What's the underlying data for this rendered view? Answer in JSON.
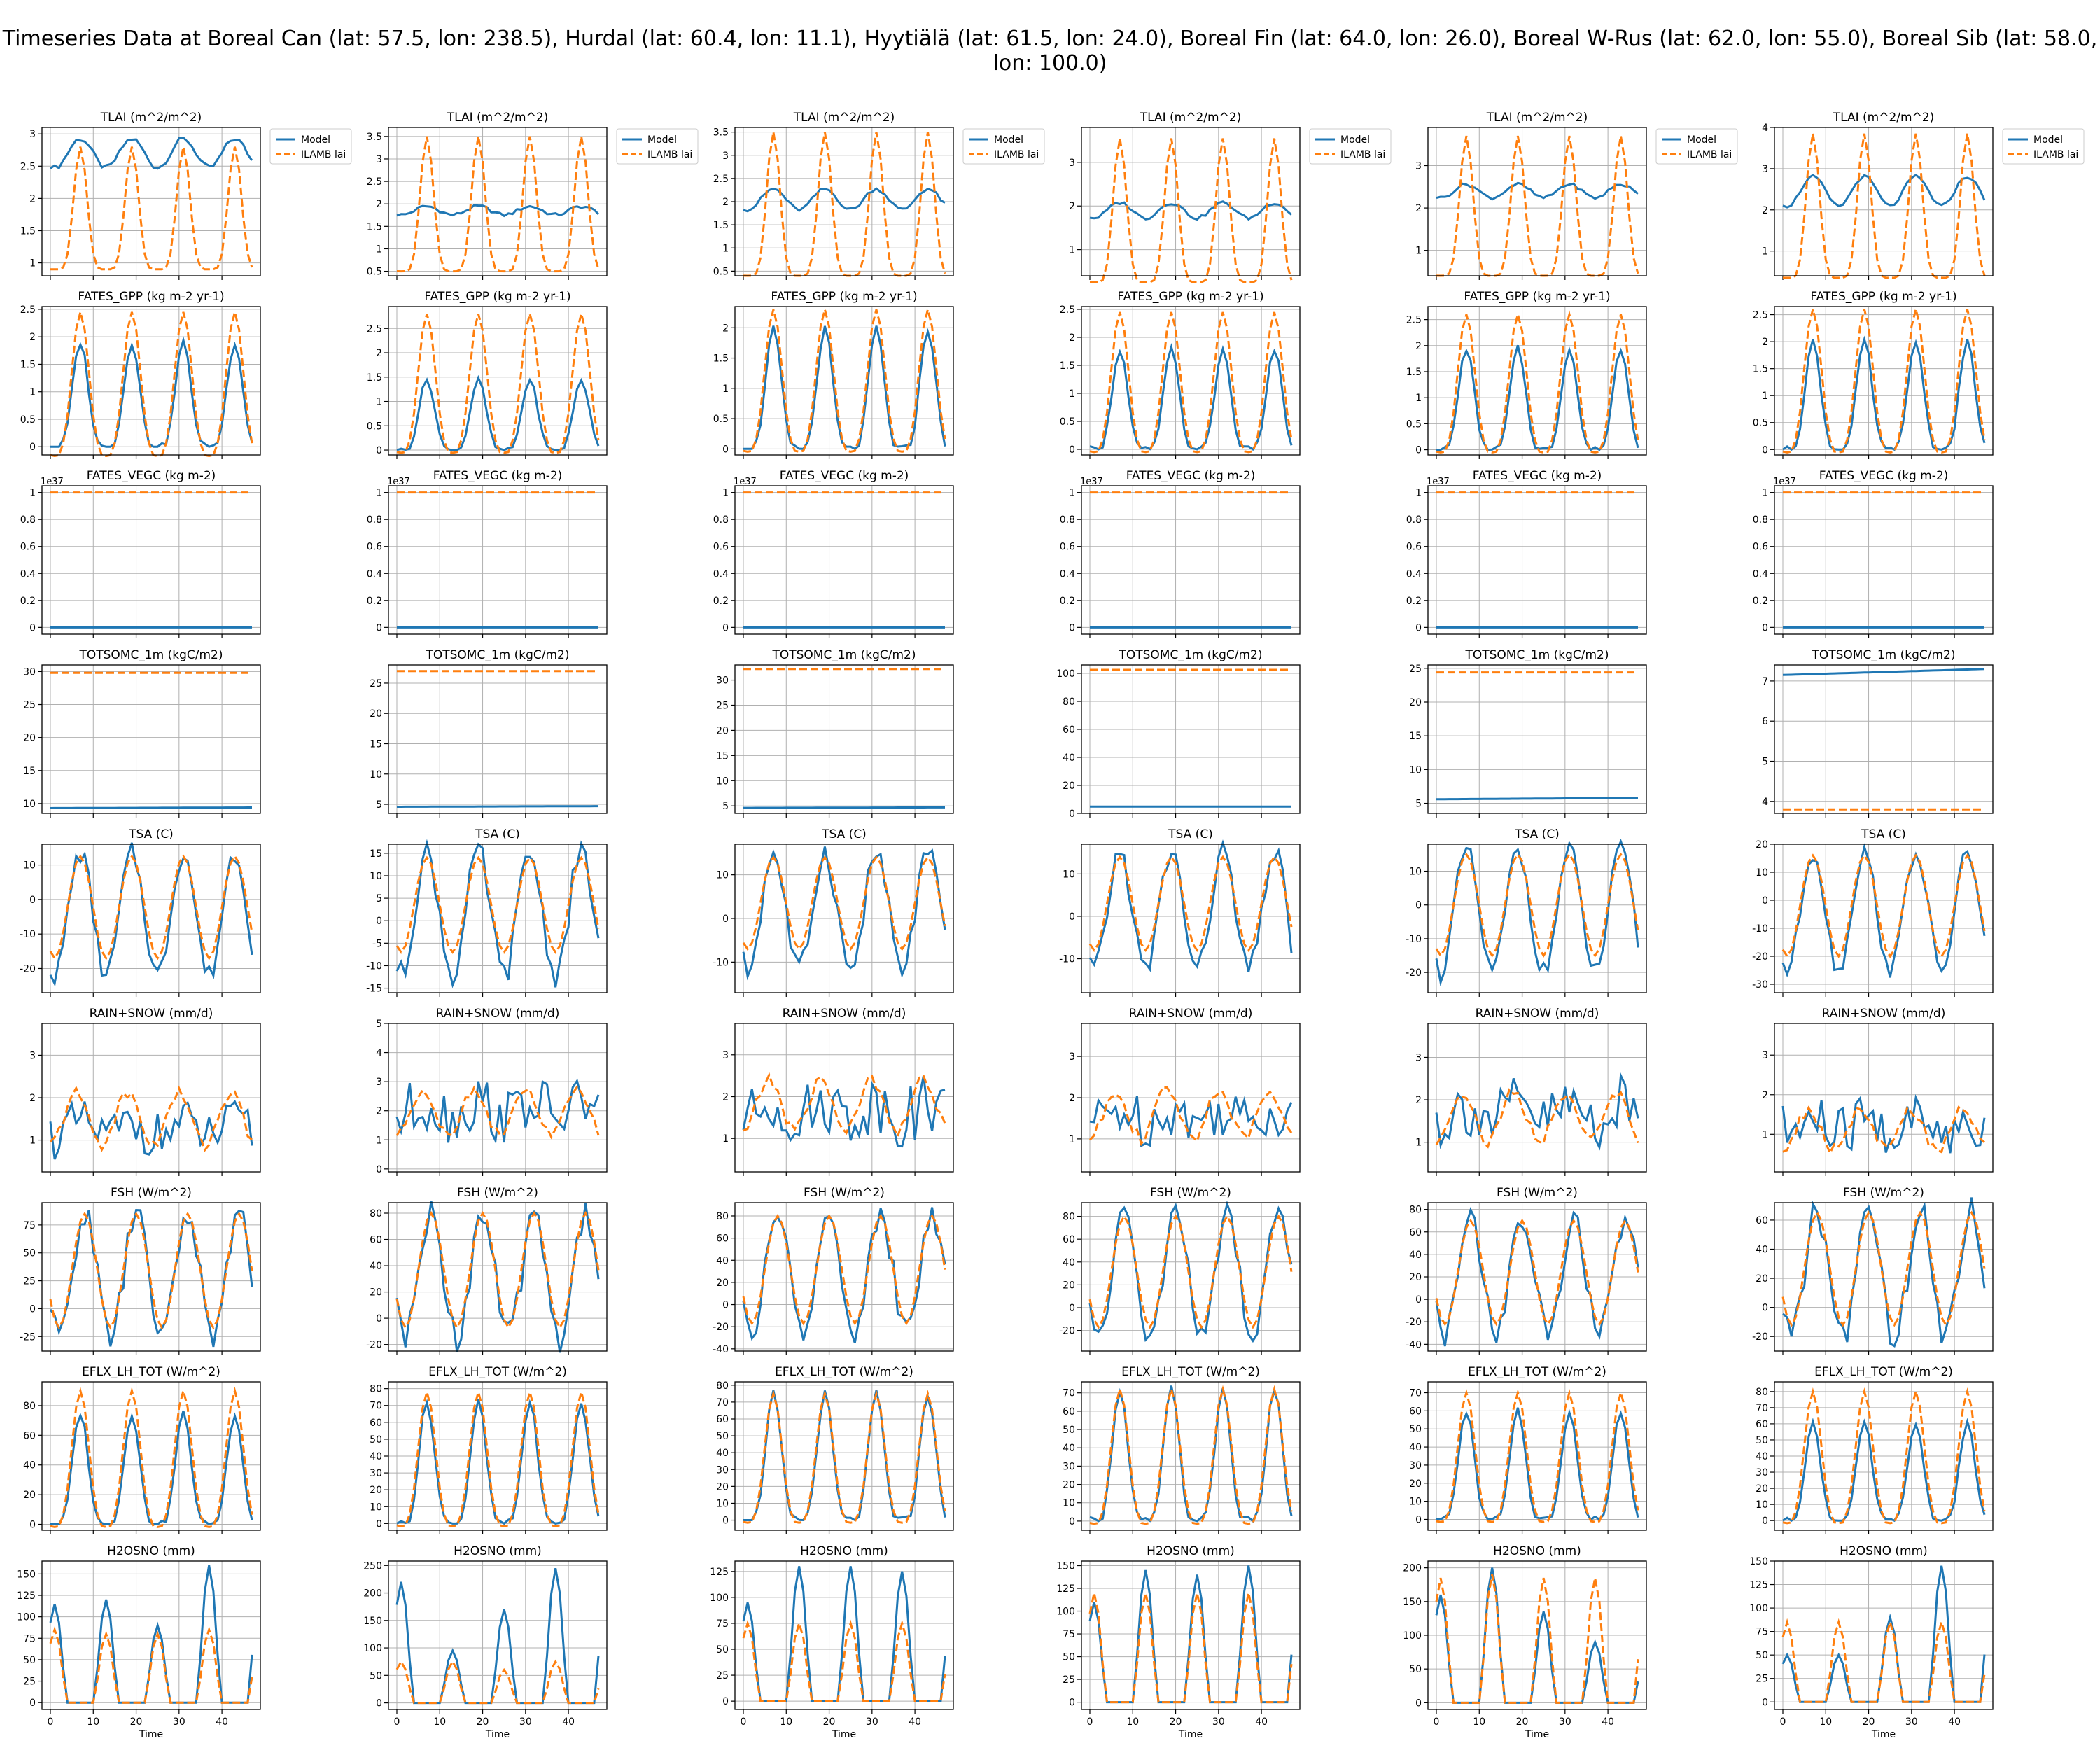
{
  "suptitle": "Timeseries Data at Boreal Can (lat: 57.5, lon: 238.5), Hurdal (lat: 60.4, lon: 11.1), Hyytiälä (lat: 61.5, lon: 24.0), Boreal Fin (lat: 64.0, lon: 26.0), Boreal W-Rus (lat: 62.0, lon: 55.0), Boreal Sib (lat: 58.0, lon: 100.0)",
  "xlabel": "Time",
  "x_ticks": [
    0,
    10,
    20,
    30,
    40
  ],
  "legend": {
    "model": "Model",
    "obs": "ILAMB lai"
  },
  "colors": {
    "model": "#1f77b4",
    "obs": "#ff7f0e"
  },
  "exponent_label": "1e37",
  "row_titles": [
    "TLAI (m^2/m^2)",
    "FATES_GPP (kg m-2 yr-1)",
    "FATES_VEGC (kg m-2)",
    "TOTSOMC_1m (kgC/m2)",
    "TSA (C)",
    "RAIN+SNOW (mm/d)",
    "FSH (W/m^2)",
    "EFLX_LH_TOT (W/m^2)",
    "H2OSNO (mm)"
  ],
  "sites": [
    "Boreal Can",
    "Hurdal",
    "Hyytiälä",
    "Boreal Fin",
    "Boreal W-Rus",
    "Boreal Sib"
  ],
  "chart_data": {
    "type": "line",
    "x": [
      0,
      47
    ],
    "rows": [
      {
        "var": "TLAI",
        "kind": "seasonal_lai",
        "ylims": [
          [
            0.8,
            3.1
          ],
          [
            0.4,
            3.7
          ],
          [
            0.4,
            3.6
          ],
          [
            0.4,
            3.8
          ],
          [
            0.4,
            3.9
          ],
          [
            0.4,
            4.0
          ]
        ],
        "yticks": [
          [
            1.0,
            1.5,
            2.0,
            2.5,
            3.0
          ],
          [
            0.5,
            1.0,
            1.5,
            2.0,
            2.5,
            3.0,
            3.5
          ],
          [
            0.5,
            1.0,
            1.5,
            2.0,
            2.5,
            3.0,
            3.5
          ],
          [
            1,
            2,
            3
          ],
          [
            1,
            2,
            3
          ],
          [
            1,
            2,
            3,
            4
          ]
        ],
        "model_base": [
          2.7,
          1.85,
          2.05,
          1.9,
          2.4,
          2.45
        ],
        "model_amp": [
          0.28,
          0.12,
          0.28,
          0.22,
          0.2,
          0.45
        ],
        "obs_min": [
          0.9,
          0.5,
          0.4,
          0.25,
          0.4,
          0.35
        ],
        "obs_max": [
          2.8,
          3.5,
          3.5,
          3.55,
          3.7,
          3.85
        ]
      },
      {
        "var": "FATES_GPP",
        "kind": "seasonal_pos",
        "ylims": [
          [
            -0.15,
            2.55
          ],
          [
            -0.1,
            2.95
          ],
          [
            -0.1,
            2.35
          ],
          [
            -0.1,
            2.55
          ],
          [
            -0.1,
            2.75
          ],
          [
            -0.1,
            2.65
          ]
        ],
        "yticks": [
          [
            0.0,
            0.5,
            1.0,
            1.5,
            2.0,
            2.5
          ],
          [
            0.0,
            0.5,
            1.0,
            1.5,
            2.0,
            2.5
          ],
          [
            0.0,
            0.5,
            1.0,
            1.5,
            2.0
          ],
          [
            0.0,
            0.5,
            1.0,
            1.5,
            2.0,
            2.5
          ],
          [
            0.0,
            0.5,
            1.0,
            1.5,
            2.0,
            2.5
          ],
          [
            0.0,
            0.5,
            1.0,
            1.5,
            2.0,
            2.5
          ]
        ],
        "model_max": [
          1.9,
          1.45,
          1.98,
          1.78,
          1.95,
          2.0
        ],
        "obs_max": [
          2.45,
          2.8,
          2.3,
          2.45,
          2.6,
          2.6
        ],
        "obs_min": [
          -0.12,
          0.0,
          0.0,
          0.0,
          0.0,
          0.0
        ]
      },
      {
        "var": "FATES_VEGC",
        "kind": "flat",
        "ylims": [
          [
            -0.05,
            1.05
          ],
          [
            -0.05,
            1.05
          ],
          [
            -0.05,
            1.05
          ],
          [
            -0.05,
            1.05
          ],
          [
            -0.05,
            1.05
          ],
          [
            -0.05,
            1.05
          ]
        ],
        "yticks": [
          [
            0.0,
            0.2,
            0.4,
            0.6,
            0.8,
            1.0
          ],
          [
            0.0,
            0.2,
            0.4,
            0.6,
            0.8,
            1.0
          ],
          [
            0.0,
            0.2,
            0.4,
            0.6,
            0.8,
            1.0
          ],
          [
            0.0,
            0.2,
            0.4,
            0.6,
            0.8,
            1.0
          ],
          [
            0.0,
            0.2,
            0.4,
            0.6,
            0.8,
            1.0
          ],
          [
            0.0,
            0.2,
            0.4,
            0.6,
            0.8,
            1.0
          ]
        ],
        "model_level": [
          0,
          0,
          0,
          0,
          0,
          0
        ],
        "obs_level": [
          1,
          1,
          1,
          1,
          1,
          1
        ],
        "exponent": true
      },
      {
        "var": "TOTSOMC_1m",
        "kind": "flat",
        "ylims": [
          [
            8.5,
            31
          ],
          [
            3.5,
            28
          ],
          [
            3.5,
            33
          ],
          [
            0,
            106
          ],
          [
            3.5,
            25.5
          ],
          [
            3.7,
            7.4
          ]
        ],
        "yticks": [
          [
            10,
            15,
            20,
            25,
            30
          ],
          [
            5,
            10,
            15,
            20,
            25
          ],
          [
            5,
            10,
            15,
            20,
            25,
            30
          ],
          [
            0,
            20,
            40,
            60,
            80,
            100
          ],
          [
            5,
            10,
            15,
            20,
            25
          ],
          [
            4,
            5,
            6,
            7
          ]
        ],
        "model_level": [
          9.3,
          4.6,
          4.6,
          4.9,
          5.6,
          7.15
        ],
        "model_end": [
          9.4,
          4.7,
          4.7,
          4.9,
          5.8,
          7.3
        ],
        "obs_level": [
          29.8,
          27.0,
          32.2,
          102.5,
          24.4,
          3.8
        ]
      },
      {
        "var": "TSA",
        "kind": "seasonal_temp",
        "ylims": [
          [
            -27,
            16
          ],
          [
            -16,
            17
          ],
          [
            -17,
            17
          ],
          [
            -18,
            17
          ],
          [
            -26,
            18
          ],
          [
            -33,
            20
          ]
        ],
        "yticks": [
          [
            -20,
            -10,
            0,
            10
          ],
          [
            -15,
            -10,
            -5,
            0,
            5,
            10,
            15
          ],
          [
            -10,
            0,
            10
          ],
          [
            -10,
            0,
            10
          ],
          [
            -20,
            -10,
            0,
            10
          ],
          [
            -30,
            -20,
            -10,
            0,
            10,
            20
          ]
        ],
        "t_min": [
          -22,
          -12,
          -12,
          -13,
          -20,
          -25
        ],
        "t_max": [
          13.5,
          15,
          15,
          15,
          16,
          17
        ]
      },
      {
        "var": "RAIN+SNOW",
        "kind": "precip",
        "ylims": [
          [
            0.25,
            3.75
          ],
          [
            -0.1,
            5.0
          ],
          [
            0.2,
            3.75
          ],
          [
            0.2,
            3.8
          ],
          [
            0.3,
            3.8
          ],
          [
            0.05,
            3.8
          ]
        ],
        "yticks": [
          [
            1,
            2,
            3
          ],
          [
            0,
            1,
            2,
            3,
            4,
            5
          ],
          [
            1,
            2,
            3
          ],
          [
            1,
            2,
            3
          ],
          [
            1,
            2,
            3
          ],
          [
            1,
            2,
            3
          ]
        ],
        "model_mean": [
          1.1,
          1.8,
          1.5,
          1.4,
          1.5,
          1.0
        ],
        "model_spread": [
          0.7,
          1.3,
          0.9,
          0.8,
          0.9,
          0.9
        ],
        "obs_low": [
          0.9,
          1.2,
          1.2,
          1.0,
          1.0,
          0.6
        ],
        "obs_high": [
          2.1,
          2.7,
          2.4,
          2.2,
          2.2,
          1.6
        ]
      },
      {
        "var": "FSH",
        "kind": "seasonal_flux",
        "ylims": [
          [
            -38,
            95
          ],
          [
            -25,
            88
          ],
          [
            -42,
            92
          ],
          [
            -38,
            92
          ],
          [
            -46,
            86
          ],
          [
            -30,
            72
          ]
        ],
        "yticks": [
          [
            -25,
            0,
            25,
            50,
            75
          ],
          [
            -20,
            0,
            20,
            40,
            60,
            80
          ],
          [
            -40,
            -20,
            0,
            20,
            40,
            60,
            80
          ],
          [
            -20,
            0,
            20,
            40,
            60,
            80
          ],
          [
            -40,
            -20,
            0,
            20,
            40,
            60,
            80
          ],
          [
            -20,
            0,
            20,
            40,
            60
          ]
        ],
        "f_min": [
          -25,
          -15,
          -25,
          -25,
          -30,
          -20
        ],
        "f_max": [
          85,
          80,
          80,
          80,
          70,
          65
        ]
      },
      {
        "var": "EFLX_LH_TOT",
        "kind": "seasonal_pos",
        "ylims": [
          [
            -4,
            96
          ],
          [
            -4,
            84
          ],
          [
            -6,
            82
          ],
          [
            -5,
            76
          ],
          [
            -6,
            76
          ],
          [
            -6,
            86
          ]
        ],
        "yticks": [
          [
            0,
            20,
            40,
            60,
            80
          ],
          [
            0,
            10,
            20,
            30,
            40,
            50,
            60,
            70,
            80
          ],
          [
            0,
            10,
            20,
            30,
            40,
            50,
            60,
            70,
            80
          ],
          [
            0,
            10,
            20,
            30,
            40,
            50,
            60,
            70
          ],
          [
            0,
            10,
            20,
            30,
            40,
            50,
            60,
            70
          ],
          [
            0,
            10,
            20,
            30,
            40,
            50,
            60,
            70,
            80
          ]
        ],
        "model_max": [
          75,
          72,
          75,
          72,
          60,
          60
        ],
        "obs_max": [
          90,
          78,
          75,
          72,
          70,
          80
        ],
        "obs_min": [
          0,
          0,
          0,
          0,
          0,
          0
        ]
      },
      {
        "var": "H2OSNO",
        "kind": "snow",
        "ylims": [
          [
            -8,
            165
          ],
          [
            -12,
            258
          ],
          [
            -8,
            135
          ],
          [
            -8,
            155
          ],
          [
            -10,
            210
          ],
          [
            -8,
            150
          ]
        ],
        "yticks": [
          [
            0,
            25,
            50,
            75,
            100,
            125,
            150
          ],
          [
            0,
            50,
            100,
            150,
            200,
            250
          ],
          [
            0,
            25,
            50,
            75,
            100,
            125
          ],
          [
            0,
            25,
            50,
            75,
            100,
            125,
            150
          ],
          [
            0,
            50,
            100,
            150,
            200
          ],
          [
            0,
            25,
            50,
            75,
            100,
            125,
            150
          ]
        ],
        "model_peaks": [
          [
            115,
            120,
            90,
            160
          ],
          [
            220,
            95,
            170,
            245
          ],
          [
            95,
            130,
            130,
            125
          ],
          [
            110,
            145,
            140,
            150
          ],
          [
            160,
            200,
            135,
            90
          ],
          [
            50,
            50,
            90,
            145
          ]
        ],
        "obs_peaks": [
          [
            85,
            80,
            80,
            85
          ],
          [
            75,
            75,
            60,
            75
          ],
          [
            75,
            75,
            75,
            75
          ],
          [
            120,
            120,
            120,
            120
          ],
          [
            185,
            190,
            185,
            185
          ],
          [
            85,
            85,
            85,
            85
          ]
        ]
      }
    ]
  }
}
